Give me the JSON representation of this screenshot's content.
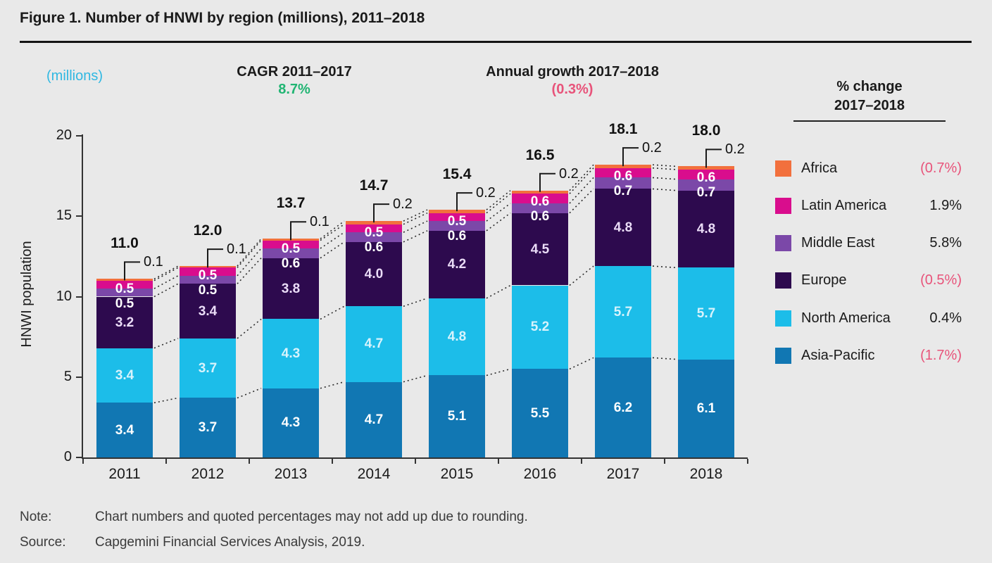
{
  "title": "Figure 1. Number of HNWI by region (millions), 2011–2018",
  "annotations": {
    "units_label": "(millions)",
    "cagr_label": "CAGR 2011–2017",
    "cagr_value": "8.7%",
    "growth_label": "Annual growth 2017–2018",
    "growth_value": "(0.3%)"
  },
  "colors": {
    "accent_green": "#21b573",
    "accent_pink": "#e8537a",
    "accent_cyan": "#30b8e2",
    "axis": "#333333",
    "background": "#e9e9e9"
  },
  "legend": {
    "header_line1": "% change",
    "header_line2": "2017–2018",
    "items": [
      {
        "name": "Africa",
        "change": "(0.7%)",
        "negative": true,
        "color": "#f2703d"
      },
      {
        "name": "Latin America",
        "change": "1.9%",
        "negative": false,
        "color": "#d90d8d"
      },
      {
        "name": "Middle East",
        "change": "5.8%",
        "negative": false,
        "color": "#7b48a8"
      },
      {
        "name": "Europe",
        "change": "(0.5%)",
        "negative": true,
        "color": "#2d0a4e"
      },
      {
        "name": "North America",
        "change": "0.4%",
        "negative": false,
        "color": "#1cbde9"
      },
      {
        "name": "Asia-Pacific",
        "change": "(1.7%)",
        "negative": true,
        "color": "#1177b3"
      }
    ]
  },
  "chart_data": {
    "type": "bar",
    "stacked": true,
    "title": "Number of HNWI by region (millions), 2011–2018",
    "categories": [
      "2011",
      "2012",
      "2013",
      "2014",
      "2015",
      "2016",
      "2017",
      "2018"
    ],
    "series": [
      {
        "name": "Asia-Pacific",
        "color": "#1177b3",
        "label_color": "#ffffff",
        "values": [
          3.4,
          3.7,
          4.3,
          4.7,
          5.1,
          5.5,
          6.2,
          6.1
        ]
      },
      {
        "name": "North America",
        "color": "#1cbde9",
        "label_color": "#d7f3fc",
        "values": [
          3.4,
          3.7,
          4.3,
          4.7,
          4.8,
          5.2,
          5.7,
          5.7
        ]
      },
      {
        "name": "Europe",
        "color": "#2d0a4e",
        "label_color": "#eadcf7",
        "values": [
          3.2,
          3.4,
          3.8,
          4.0,
          4.2,
          4.5,
          4.8,
          4.8
        ]
      },
      {
        "name": "Middle East",
        "color": "#7b48a8",
        "label_color": "#ffffff",
        "values": [
          0.5,
          0.5,
          0.6,
          0.6,
          0.6,
          0.6,
          0.7,
          0.7
        ]
      },
      {
        "name": "Latin America",
        "color": "#d90d8d",
        "label_color": "#ffffff",
        "values": [
          0.5,
          0.5,
          0.5,
          0.5,
          0.5,
          0.6,
          0.6,
          0.6
        ]
      },
      {
        "name": "Africa",
        "color": "#f2703d",
        "label_color": "#ffffff",
        "values": [
          0.1,
          0.1,
          0.1,
          0.2,
          0.2,
          0.2,
          0.2,
          0.2
        ],
        "label_as_callout": true
      }
    ],
    "totals": [
      "11.0",
      "12.0",
      "13.7",
      "14.7",
      "15.4",
      "16.5",
      "18.1",
      "18.0"
    ],
    "xlabel": "",
    "ylabel": "HNWI population",
    "ylim": [
      0,
      20
    ],
    "yticks": [
      0,
      5,
      10,
      15,
      20
    ],
    "grid": false,
    "legend_position": "right"
  },
  "footer": {
    "note_label": "Note:",
    "note_text": "Chart numbers and quoted percentages may not add up due to rounding.",
    "source_label": "Source:",
    "source_text": "Capgemini Financial Services Analysis, 2019."
  }
}
